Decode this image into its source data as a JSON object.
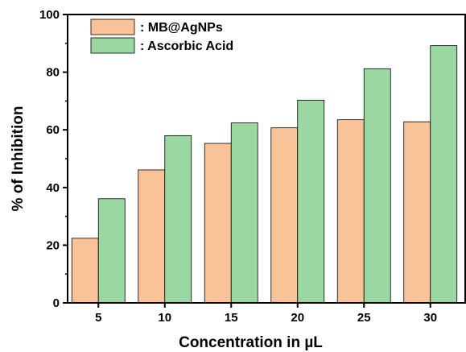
{
  "chart_data": {
    "type": "bar",
    "xlabel": "Concentration in  µL",
    "ylabel": "% of Inhibition",
    "categories": [
      "5",
      "10",
      "15",
      "20",
      "25",
      "30"
    ],
    "ylim": [
      0,
      100
    ],
    "yticks": [
      "0",
      "20",
      "40",
      "60",
      "80",
      "100"
    ],
    "series": [
      {
        "name": ": MB@AgNPs",
        "color": "#F9C39A",
        "values": [
          22.4,
          46.1,
          55.3,
          60.7,
          63.5,
          62.8
        ]
      },
      {
        "name": ": Ascorbic Acid",
        "color": "#9AD7A2",
        "values": [
          36.1,
          58.0,
          62.4,
          70.3,
          81.2,
          89.2
        ]
      }
    ],
    "legend_position": "top-left",
    "grid": false
  }
}
